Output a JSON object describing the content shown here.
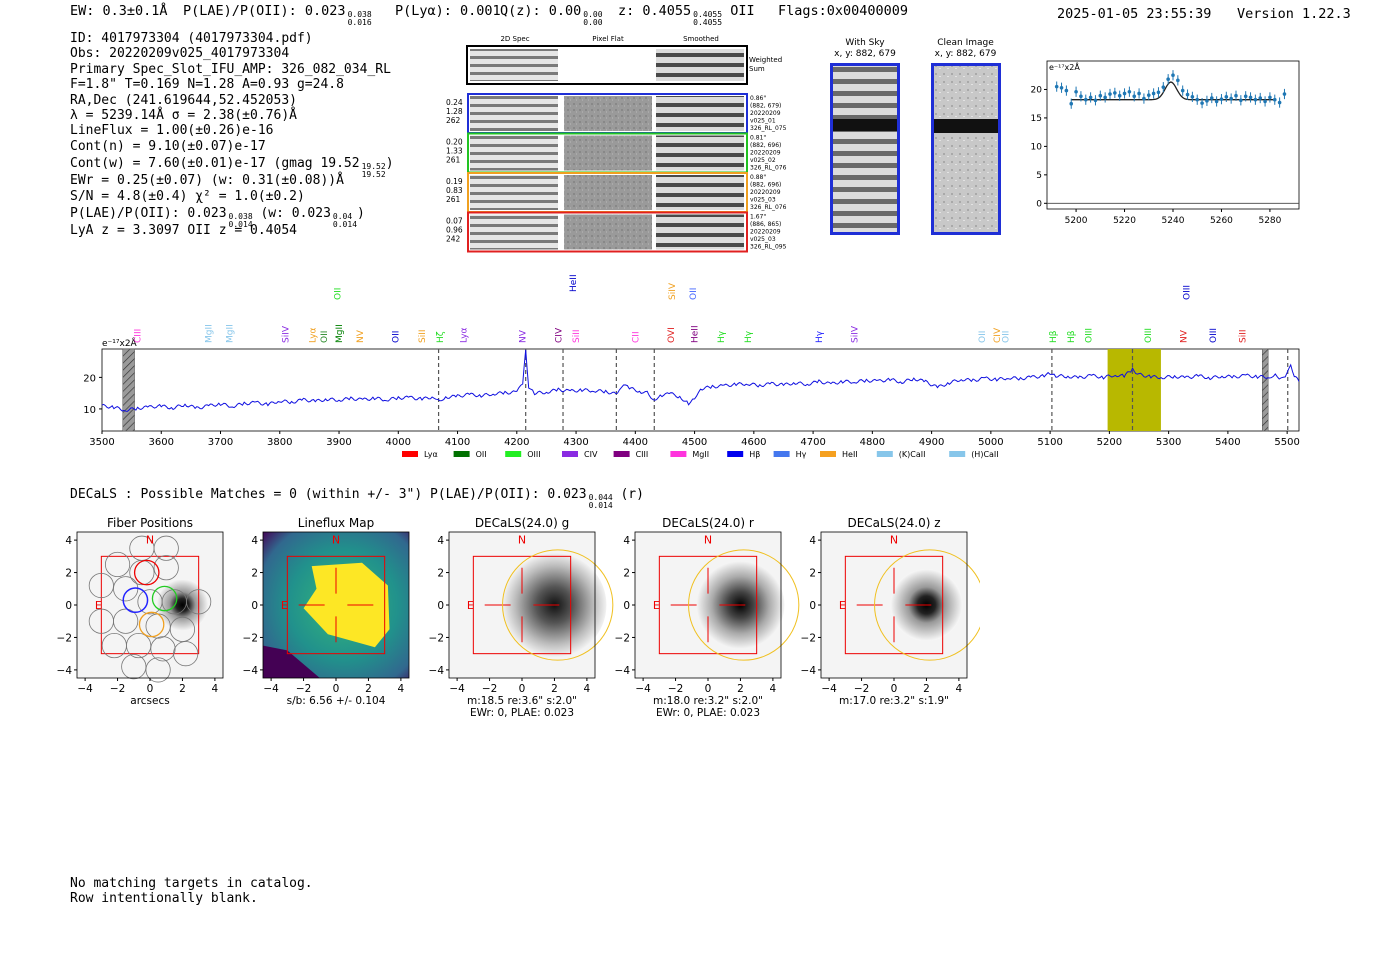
{
  "header": {
    "ew": "EW: 0.3±0.1Å",
    "plae": "P(LAE)/P(OII): 0.023",
    "plae_hi": "0.038",
    "plae_lo": "0.016",
    "plya": "P(Lyα): 0.001",
    "qz": "Q(z): 0.00",
    "qz_hi": "0.00",
    "qz_lo": "0.00",
    "z": "z: 0.4055",
    "z_hi": "0.4055",
    "z_lo": "0.4055",
    "z_line": "OII",
    "flags": "Flags:0x00400009",
    "datetime": "2025-01-05 23:55:39",
    "version": "Version 1.22.3"
  },
  "info": {
    "id": "ID: 4017973304 (4017973304.pdf)",
    "obs": "Obs: 20220209v025_4017973304",
    "primary": "Primary Spec_Slot_IFU_AMP: 326_082_034_RL",
    "fit": "F=1.8\"  T=0.169  N=1.28  A=0.93  g=24.8",
    "radec": "RA,Dec (241.619644,52.452053)",
    "lambda": "λ = 5239.14Å  σ = 2.38(±0.76)Å",
    "lineflux": "LineFlux = 1.00(±0.26)e-16",
    "contn": "Cont(n) = 9.10(±0.07)e-17",
    "contw": "Cont(w) = 7.60(±0.01)e-17 (gmag 19.52",
    "contw_hi": "19.52",
    "contw_lo": "19.52",
    "contw_end": ")",
    "ewr": "EWr = 0.25(±0.07) (w: 0.31(±0.08))Å",
    "sn": "S/N = 4.8(±0.4)  χ² = 1.0(±0.2)",
    "plae": "P(LAE)/P(OII): 0.023",
    "plae_hi": "0.038",
    "plae_lo": "0.014",
    "plae_w": "(w: 0.023",
    "plae_w_hi": "0.04",
    "plae_w_lo": "0.014",
    "plae_w_end": ")",
    "lya_z": "LyA z = 3.3097  OII z = 0.4054"
  },
  "cutouts": {
    "col_labels": [
      "2D Spec",
      "Pixel Flat",
      "Smoothed"
    ],
    "weighted_sum": [
      "Weighted",
      "Sum"
    ],
    "rows": [
      {
        "left": [
          "0.24",
          "1.28",
          "262"
        ],
        "right": [
          "0.86\"",
          "(882, 679)",
          "20220209",
          "v025_01",
          "326_RL_075"
        ],
        "color": "#1f2fd6"
      },
      {
        "left": [
          "0.20",
          "1.33",
          "261"
        ],
        "right": [
          "0.81\"",
          "(882, 696)",
          "20220209",
          "v025_02",
          "326_RL_076"
        ],
        "color": "#22c322"
      },
      {
        "left": [
          "0.19",
          "0.83",
          "261"
        ],
        "right": [
          "0.88\"",
          "(882, 696)",
          "20220209",
          "v025_03",
          "326_RL_076"
        ],
        "color": "#f0a020"
      },
      {
        "left": [
          "0.07",
          "0.96",
          "242"
        ],
        "right": [
          "1.67\"",
          "(886, 865)",
          "20220209",
          "v025_03",
          "326_RL_095"
        ],
        "color": "#e02020"
      }
    ],
    "with_sky": [
      "With Sky",
      "x, y: 882, 679"
    ],
    "clean_image": [
      "Clean Image",
      "x, y: 882, 679"
    ]
  },
  "zoom_chart": {
    "type": "scatter",
    "ylabel": "e⁻¹⁷x2Å",
    "xlim": [
      5188,
      5292
    ],
    "ylim": [
      -1,
      25
    ],
    "xticks": [
      5200,
      5220,
      5240,
      5260,
      5280
    ],
    "xtick_labels": [
      "5200",
      "5220",
      "5240",
      "5260",
      "5280"
    ],
    "yticks": [
      0,
      5,
      10,
      15,
      20
    ],
    "ytick_labels": [
      "0",
      "5",
      "10",
      "15",
      "20"
    ],
    "x": [
      5192,
      5194,
      5196,
      5198,
      5200,
      5202,
      5204,
      5206,
      5208,
      5210,
      5212,
      5214,
      5216,
      5218,
      5220,
      5222,
      5224,
      5226,
      5228,
      5230,
      5232,
      5234,
      5236,
      5238,
      5240,
      5242,
      5244,
      5246,
      5248,
      5250,
      5252,
      5254,
      5256,
      5258,
      5260,
      5262,
      5264,
      5266,
      5268,
      5270,
      5272,
      5274,
      5276,
      5278,
      5280,
      5282,
      5284,
      5286
    ],
    "y": [
      20.5,
      20.3,
      19.8,
      17.5,
      19.6,
      18.8,
      18.2,
      18.6,
      18.1,
      18.9,
      18.6,
      19.2,
      19.4,
      18.9,
      19.3,
      19.6,
      18.8,
      19.3,
      18.4,
      19.0,
      19.3,
      19.5,
      20.4,
      21.8,
      22.5,
      21.6,
      19.8,
      19.1,
      18.7,
      18.2,
      17.6,
      18.0,
      18.5,
      17.9,
      18.3,
      18.7,
      18.4,
      18.9,
      18.1,
      18.8,
      18.6,
      18.2,
      18.5,
      17.9,
      18.6,
      18.2,
      17.7,
      19.2
    ],
    "fit": {
      "continuum": 18.2,
      "peak": 21.3,
      "center": 5239.14,
      "sigma": 2.38
    }
  },
  "spectrum": {
    "type": "line",
    "ylabel": "e⁻¹⁷x2Å",
    "xlim": [
      3500,
      5520
    ],
    "ylim": [
      3,
      29
    ],
    "xticks": [
      3500,
      3600,
      3700,
      3800,
      3900,
      4000,
      4100,
      4200,
      4300,
      4400,
      4500,
      4600,
      4700,
      4800,
      4900,
      5000,
      5100,
      5200,
      5300,
      5400,
      5500
    ],
    "xtick_labels": [
      "3500",
      "3600",
      "3700",
      "3800",
      "3900",
      "4000",
      "4100",
      "4200",
      "4300",
      "4400",
      "4500",
      "4600",
      "4700",
      "4800",
      "4900",
      "5000",
      "5100",
      "5200",
      "5300",
      "5400",
      "5500"
    ],
    "yticks": [
      10,
      20
    ],
    "ytick_labels": [
      "10",
      "20"
    ],
    "highlight": [
      5197,
      5287
    ],
    "emission_center": 5239.14,
    "masked": [
      [
        3535,
        3555
      ],
      [
        5458,
        5468
      ]
    ],
    "dashed_lines": [
      4068,
      4215,
      4278,
      4368,
      4432,
      5103,
      5239,
      5501
    ],
    "points": [
      [
        3500,
        11.0
      ],
      [
        3520,
        10.5
      ],
      [
        3540,
        9.6
      ],
      [
        3560,
        10.2
      ],
      [
        3580,
        10.6
      ],
      [
        3600,
        10.9
      ],
      [
        3620,
        10.3
      ],
      [
        3640,
        11.4
      ],
      [
        3660,
        10.2
      ],
      [
        3680,
        11.0
      ],
      [
        3700,
        11.6
      ],
      [
        3720,
        10.8
      ],
      [
        3740,
        11.7
      ],
      [
        3760,
        12.0
      ],
      [
        3780,
        11.4
      ],
      [
        3800,
        12.6
      ],
      [
        3820,
        12.1
      ],
      [
        3840,
        12.9
      ],
      [
        3860,
        12.4
      ],
      [
        3880,
        13.1
      ],
      [
        3900,
        12.8
      ],
      [
        3920,
        13.3
      ],
      [
        3940,
        12.9
      ],
      [
        3960,
        13.4
      ],
      [
        3980,
        12.9
      ],
      [
        4000,
        13.5
      ],
      [
        4020,
        13.6
      ],
      [
        4040,
        13.1
      ],
      [
        4060,
        13.9
      ],
      [
        4070,
        12.8
      ],
      [
        4080,
        13.7
      ],
      [
        4100,
        14.0
      ],
      [
        4120,
        14.6
      ],
      [
        4140,
        14.2
      ],
      [
        4160,
        14.8
      ],
      [
        4180,
        15.1
      ],
      [
        4200,
        15.3
      ],
      [
        4210,
        18.0
      ],
      [
        4215,
        28.5
      ],
      [
        4220,
        17.0
      ],
      [
        4230,
        15.0
      ],
      [
        4250,
        15.3
      ],
      [
        4270,
        16.1
      ],
      [
        4290,
        15.6
      ],
      [
        4310,
        16.0
      ],
      [
        4330,
        15.8
      ],
      [
        4350,
        15.5
      ],
      [
        4370,
        14.6
      ],
      [
        4380,
        17.5
      ],
      [
        4390,
        16.6
      ],
      [
        4410,
        15.4
      ],
      [
        4420,
        15.8
      ],
      [
        4430,
        12.8
      ],
      [
        4445,
        14.4
      ],
      [
        4460,
        14.8
      ],
      [
        4475,
        13.8
      ],
      [
        4490,
        11.8
      ],
      [
        4500,
        13.6
      ],
      [
        4510,
        16.4
      ],
      [
        4530,
        17.0
      ],
      [
        4550,
        17.3
      ],
      [
        4570,
        17.8
      ],
      [
        4590,
        18.0
      ],
      [
        4610,
        17.4
      ],
      [
        4630,
        18.0
      ],
      [
        4650,
        17.6
      ],
      [
        4670,
        18.3
      ],
      [
        4690,
        17.8
      ],
      [
        4710,
        18.7
      ],
      [
        4730,
        17.9
      ],
      [
        4750,
        18.7
      ],
      [
        4770,
        18.6
      ],
      [
        4790,
        19.0
      ],
      [
        4810,
        18.8
      ],
      [
        4830,
        19.3
      ],
      [
        4850,
        18.5
      ],
      [
        4870,
        19.6
      ],
      [
        4890,
        18.6
      ],
      [
        4910,
        16.8
      ],
      [
        4930,
        18.3
      ],
      [
        4950,
        19.4
      ],
      [
        4970,
        19.0
      ],
      [
        4990,
        19.7
      ],
      [
        5010,
        19.3
      ],
      [
        5030,
        19.9
      ],
      [
        5050,
        19.6
      ],
      [
        5070,
        20.1
      ],
      [
        5090,
        20.4
      ],
      [
        5100,
        21.4
      ],
      [
        5110,
        20.5
      ],
      [
        5130,
        20.3
      ],
      [
        5150,
        19.9
      ],
      [
        5170,
        20.6
      ],
      [
        5190,
        20.0
      ],
      [
        5210,
        20.8
      ],
      [
        5225,
        20.4
      ],
      [
        5239,
        22.5
      ],
      [
        5250,
        20.9
      ],
      [
        5270,
        20.2
      ],
      [
        5290,
        20.0
      ],
      [
        5310,
        20.3
      ],
      [
        5330,
        19.9
      ],
      [
        5350,
        20.5
      ],
      [
        5370,
        19.8
      ],
      [
        5390,
        20.4
      ],
      [
        5410,
        20.1
      ],
      [
        5430,
        20.6
      ],
      [
        5450,
        20.2
      ],
      [
        5470,
        20.1
      ],
      [
        5480,
        21.0
      ],
      [
        5490,
        19.5
      ],
      [
        5500,
        21.0
      ],
      [
        5506,
        24.2
      ],
      [
        5512,
        20.5
      ],
      [
        5520,
        18.7
      ]
    ],
    "line_labels": [
      {
        "wl": 3560,
        "name": "CIII",
        "color": "#ff33dd",
        "level": 0
      },
      {
        "wl": 3680,
        "name": "MgII",
        "color": "#87c6ea",
        "level": 0
      },
      {
        "wl": 3715,
        "name": "MgII",
        "color": "#87c6ea",
        "level": 0
      },
      {
        "wl": 3810,
        "name": "SiIV",
        "color": "#8a2be2",
        "level": 0
      },
      {
        "wl": 3855,
        "name": "Lyα",
        "color": "#f0a020",
        "level": 0
      },
      {
        "wl": 3875,
        "name": "OII",
        "color": "#2a8a2a",
        "level": 0
      },
      {
        "wl": 3900,
        "name": "MgII",
        "color": "#008000",
        "level": 0
      },
      {
        "wl": 3897,
        "name": "OII",
        "color": "#22dd22",
        "level": 2
      },
      {
        "wl": 3935,
        "name": "NV",
        "color": "#f0a020",
        "level": 0
      },
      {
        "wl": 3995,
        "name": "OII",
        "color": "#0000cc",
        "level": 0
      },
      {
        "wl": 4040,
        "name": "SiII",
        "color": "#f0a020",
        "level": 0
      },
      {
        "wl": 4070,
        "name": "Hζ",
        "color": "#22dd22",
        "level": 0
      },
      {
        "wl": 4110,
        "name": "Lyα",
        "color": "#8a2be2",
        "level": 0
      },
      {
        "wl": 4210,
        "name": "NV",
        "color": "#8a2be2",
        "level": 0
      },
      {
        "wl": 4270,
        "name": "CIV",
        "color": "#800080",
        "level": 0
      },
      {
        "wl": 4300,
        "name": "SiII",
        "color": "#ff33dd",
        "level": 0
      },
      {
        "wl": 4295,
        "name": "HeII",
        "color": "#0000cc",
        "level": 3
      },
      {
        "wl": 4400,
        "name": "CII",
        "color": "#ff33dd",
        "level": 0
      },
      {
        "wl": 4460,
        "name": "OVI",
        "color": "#e02020",
        "level": 0
      },
      {
        "wl": 4462,
        "name": "SiIV",
        "color": "#f0a020",
        "level": 2
      },
      {
        "wl": 4500,
        "name": "HeII",
        "color": "#800080",
        "level": 0
      },
      {
        "wl": 4497,
        "name": "OII",
        "color": "#4466ff",
        "level": 2
      },
      {
        "wl": 4545,
        "name": "Hγ",
        "color": "#22dd22",
        "level": 0
      },
      {
        "wl": 4590,
        "name": "Hγ",
        "color": "#22dd22",
        "level": 0
      },
      {
        "wl": 4710,
        "name": "Hγ",
        "color": "#2222ff",
        "level": 0
      },
      {
        "wl": 4770,
        "name": "SiIV",
        "color": "#8a2be2",
        "level": 0
      },
      {
        "wl": 4985,
        "name": "OII",
        "color": "#87c6ea",
        "level": 0
      },
      {
        "wl": 5010,
        "name": "CIV",
        "color": "#f0a020",
        "level": 0
      },
      {
        "wl": 5025,
        "name": "OII",
        "color": "#87c6ea",
        "level": 0
      },
      {
        "wl": 5105,
        "name": "Hβ",
        "color": "#22dd22",
        "level": 0
      },
      {
        "wl": 5135,
        "name": "Hβ",
        "color": "#22dd22",
        "level": 0
      },
      {
        "wl": 5165,
        "name": "OIII",
        "color": "#22dd22",
        "level": 0
      },
      {
        "wl": 5265,
        "name": "OIII",
        "color": "#22dd22",
        "level": 0
      },
      {
        "wl": 5325,
        "name": "NV",
        "color": "#e02020",
        "level": 0
      },
      {
        "wl": 5330,
        "name": "OIII",
        "color": "#0000cc",
        "level": 2
      },
      {
        "wl": 5375,
        "name": "OIII",
        "color": "#0000cc",
        "level": 0
      },
      {
        "wl": 5425,
        "name": "SiII",
        "color": "#e02020",
        "level": 0
      }
    ],
    "legend": [
      {
        "name": "Lyα",
        "color": "#ff0000"
      },
      {
        "name": "OII",
        "color": "#007000"
      },
      {
        "name": "OIII",
        "color": "#22ee22"
      },
      {
        "name": "CIV",
        "color": "#8a2be2"
      },
      {
        "name": "CIII",
        "color": "#800080"
      },
      {
        "name": "MgII",
        "color": "#ff33dd"
      },
      {
        "name": "Hβ",
        "color": "#0000ee"
      },
      {
        "name": "Hγ",
        "color": "#4477ee"
      },
      {
        "name": "HeII",
        "color": "#f5a020"
      },
      {
        "name": "(K)CaII",
        "color": "#87c6ea"
      },
      {
        "name": "(H)CaII",
        "color": "#87c6ea"
      }
    ]
  },
  "decals": {
    "summary": "DECaLS : Possible Matches = 0 (within +/- 3\")  P(LAE)/P(OII): 0.023",
    "summary_hi": "0.044",
    "summary_lo": "0.014",
    "summary_end": "(r)",
    "axis_ticks": [
      "−4",
      "−2",
      "0",
      "2",
      "4"
    ],
    "panels": [
      {
        "title": "Fiber Positions",
        "cap1": "arcsecs",
        "cap2": "",
        "kind": "fiber"
      },
      {
        "title": "Lineflux Map",
        "cap1": "s/b: 6.56 +/- 0.104",
        "cap2": "",
        "kind": "flux"
      },
      {
        "title": "DECaLS(24.0) g",
        "cap1": "m:18.5  re:3.6\"  s:2.0\"",
        "cap2": "EWr: 0, PLAE: 0.023",
        "kind": "galaxy",
        "blob": "soft"
      },
      {
        "title": "DECaLS(24.0) r",
        "cap1": "m:18.0  re:3.2\"  s:2.0\"",
        "cap2": "EWr: 0, PLAE: 0.023",
        "kind": "galaxy",
        "blob": "mid"
      },
      {
        "title": "DECaLS(24.0) z",
        "cap1": "m:17.0  re:3.2\"  s:1.9\"",
        "cap2": "",
        "kind": "galaxy",
        "blob": "sharp"
      }
    ],
    "compass_n": "N",
    "compass_e": "E"
  },
  "footer": {
    "line1": "No matching targets in catalog.",
    "line2": "Row intentionally blank."
  }
}
